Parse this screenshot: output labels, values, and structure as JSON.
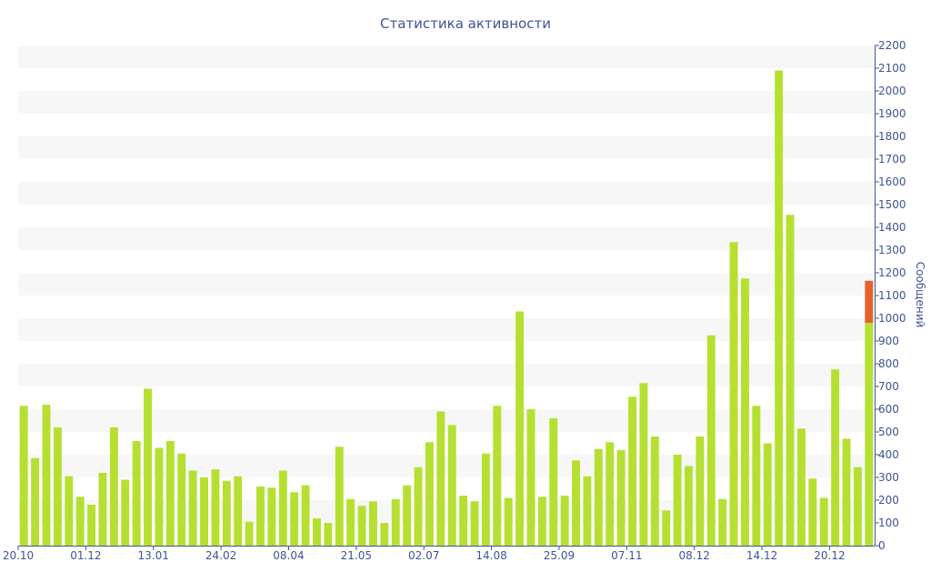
{
  "chart_data": {
    "type": "bar",
    "title": "Статистика активности",
    "xlabel": "",
    "ylabel": "Сообщений",
    "ylim": [
      0,
      2200
    ],
    "yticks": [
      0,
      100,
      200,
      300,
      400,
      500,
      600,
      700,
      800,
      900,
      1000,
      1100,
      1200,
      1300,
      1400,
      1500,
      1600,
      1700,
      1800,
      1900,
      2000,
      2100,
      2200
    ],
    "x_tick_labels": [
      {
        "label": "20.10",
        "index": 0
      },
      {
        "label": "01.12",
        "index": 6
      },
      {
        "label": "13.01",
        "index": 12
      },
      {
        "label": "24.02",
        "index": 18
      },
      {
        "label": "08.04",
        "index": 24
      },
      {
        "label": "21.05",
        "index": 30
      },
      {
        "label": "02.07",
        "index": 36
      },
      {
        "label": "14.08",
        "index": 42
      },
      {
        "label": "25.09",
        "index": 48
      },
      {
        "label": "07.11",
        "index": 54
      },
      {
        "label": "08.12",
        "index": 60
      },
      {
        "label": "14.12",
        "index": 66
      },
      {
        "label": "20.12",
        "index": 72
      }
    ],
    "grid": true,
    "grid_style": "alternating horizontal bands",
    "axis_side": "right",
    "colors": {
      "bar": "#b5e032",
      "highlight": "#e4622e",
      "band": "#f7f7f7",
      "axis": "#3f5492",
      "text": "#3f5492"
    },
    "series": [
      {
        "values": [
          615,
          385,
          620,
          520,
          305,
          215,
          180,
          320,
          520,
          290,
          460,
          690,
          430,
          460,
          405,
          330,
          300,
          335,
          285,
          305,
          105,
          260,
          255,
          330,
          235,
          265,
          120,
          100,
          435,
          205,
          175,
          195,
          100,
          205,
          265,
          345,
          455,
          590,
          530,
          220,
          195,
          405,
          615,
          210,
          1030,
          600,
          215,
          560,
          220,
          375,
          305,
          425,
          455,
          420,
          655,
          715,
          480,
          155,
          400,
          350,
          480,
          925,
          205,
          1335,
          1175,
          615,
          450,
          2090,
          1455,
          515,
          295,
          210,
          775,
          470,
          345,
          980
        ],
        "extra_top": {
          "index": 75,
          "value": 185,
          "label": "highlighted portion of last bar"
        }
      }
    ]
  }
}
